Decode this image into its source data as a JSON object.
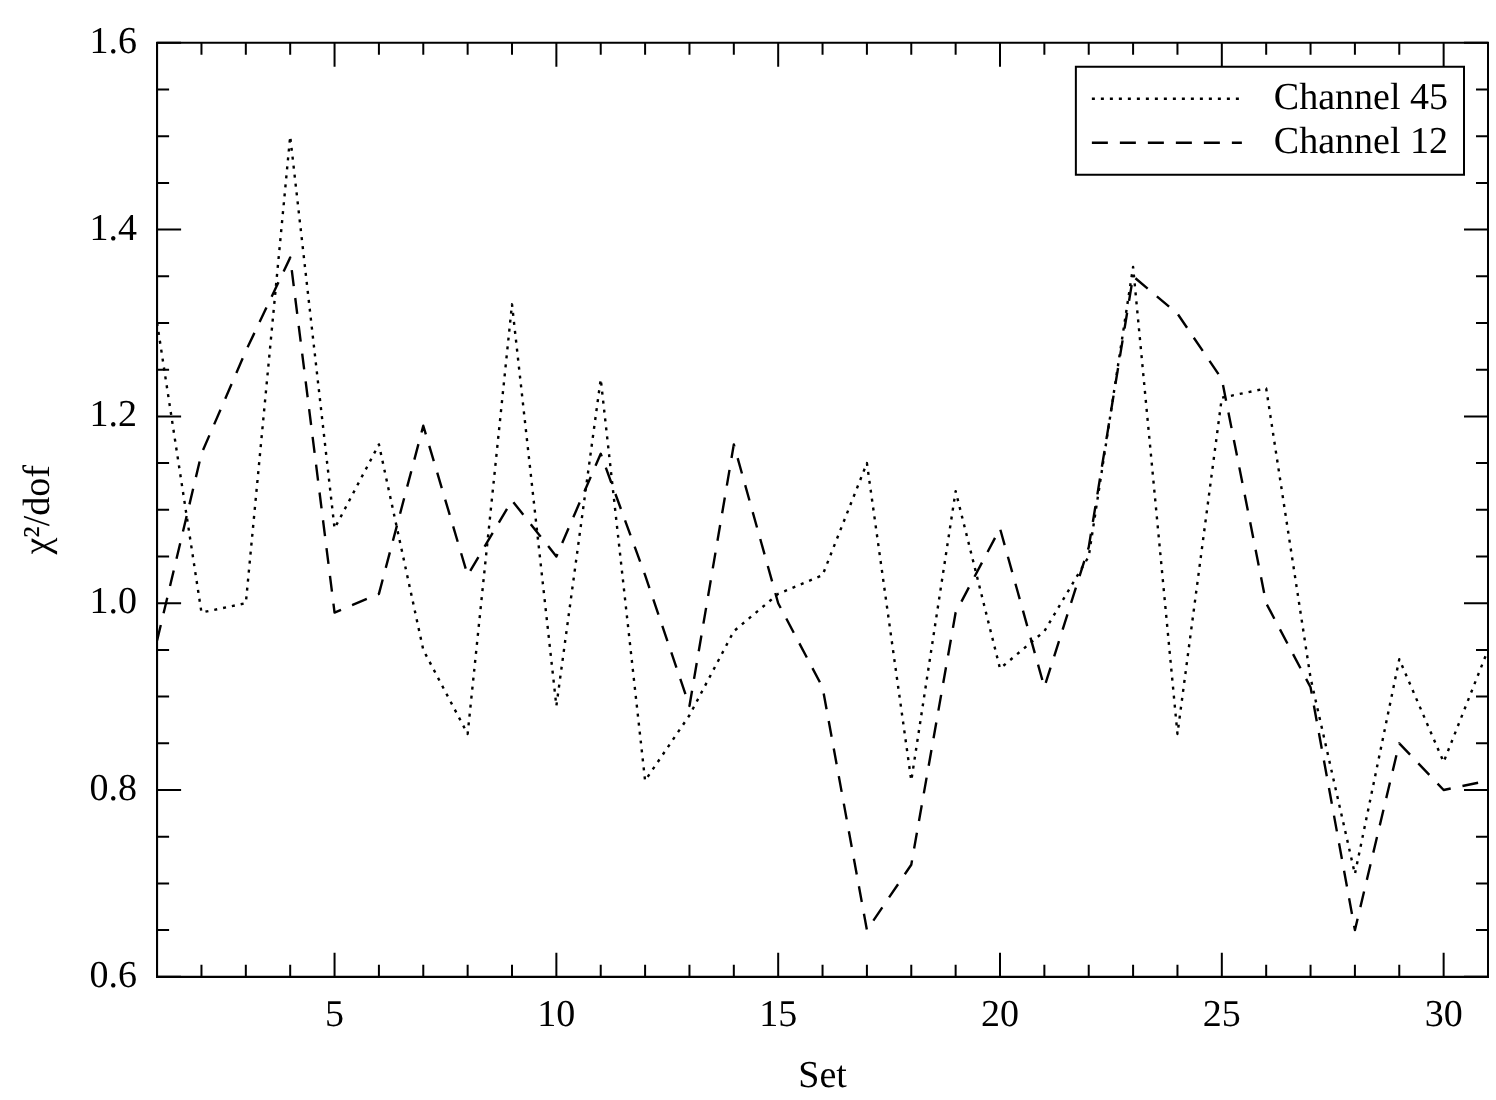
{
  "chart_data": {
    "type": "line",
    "xlabel": "Set",
    "ylabel": "χ²/dof",
    "x": [
      1,
      2,
      3,
      4,
      5,
      6,
      7,
      8,
      9,
      10,
      11,
      12,
      13,
      14,
      15,
      16,
      17,
      18,
      19,
      20,
      21,
      22,
      23,
      24,
      25,
      26,
      27,
      28,
      29,
      30,
      31
    ],
    "series": [
      {
        "name": "Channel 45",
        "color": "#000000",
        "line_style": "dotted",
        "values": [
          1.3,
          0.99,
          1.0,
          1.5,
          1.08,
          1.17,
          0.95,
          0.86,
          1.32,
          0.89,
          1.24,
          0.81,
          0.88,
          0.97,
          1.01,
          1.03,
          1.15,
          0.81,
          1.12,
          0.93,
          0.97,
          1.05,
          1.36,
          0.86,
          1.22,
          1.23,
          0.92,
          0.71,
          0.94,
          0.83,
          0.95
        ]
      },
      {
        "name": "Channel 12",
        "color": "#000000",
        "line_style": "dashed",
        "values": [
          0.96,
          1.16,
          1.27,
          1.37,
          0.99,
          1.01,
          1.19,
          1.03,
          1.11,
          1.05,
          1.16,
          1.03,
          0.89,
          1.17,
          1.0,
          0.91,
          0.65,
          0.72,
          0.99,
          1.08,
          0.91,
          1.06,
          1.35,
          1.31,
          1.24,
          1.0,
          0.91,
          0.65,
          0.85,
          0.8,
          0.81
        ]
      }
    ],
    "xlim": [
      1,
      31
    ],
    "xticks": [
      {
        "value": 2,
        "label": null
      },
      {
        "value": 3,
        "label": null
      },
      {
        "value": 4,
        "label": null
      },
      5,
      {
        "value": 6,
        "label": null
      },
      {
        "value": 7,
        "label": null
      },
      {
        "value": 8,
        "label": null
      },
      {
        "value": 9,
        "label": null
      },
      10,
      {
        "value": 11,
        "label": null
      },
      {
        "value": 12,
        "label": null
      },
      {
        "value": 13,
        "label": null
      },
      {
        "value": 14,
        "label": null
      },
      15,
      {
        "value": 16,
        "label": null
      },
      {
        "value": 17,
        "label": null
      },
      {
        "value": 18,
        "label": null
      },
      {
        "value": 19,
        "label": null
      },
      20,
      {
        "value": 21,
        "label": null
      },
      {
        "value": 22,
        "label": null
      },
      {
        "value": 23,
        "label": null
      },
      {
        "value": 24,
        "label": null
      },
      25,
      {
        "value": 26,
        "label": null
      },
      {
        "value": 27,
        "label": null
      },
      {
        "value": 28,
        "label": null
      },
      {
        "value": 29,
        "label": null
      },
      30
    ],
    "ylim": [
      0.6,
      1.6
    ],
    "yticks": [
      {
        "value": 0.6,
        "label": "0.6"
      },
      {
        "value": 0.65,
        "label": null
      },
      {
        "value": 0.7,
        "label": null
      },
      {
        "value": 0.75,
        "label": null
      },
      {
        "value": 0.8,
        "label": "0.8"
      },
      {
        "value": 0.85,
        "label": null
      },
      {
        "value": 0.9,
        "label": null
      },
      {
        "value": 0.95,
        "label": null
      },
      {
        "value": 1.0,
        "label": "1.0"
      },
      {
        "value": 1.05,
        "label": null
      },
      {
        "value": 1.1,
        "label": null
      },
      {
        "value": 1.15,
        "label": null
      },
      {
        "value": 1.2,
        "label": "1.2"
      },
      {
        "value": 1.25,
        "label": null
      },
      {
        "value": 1.3,
        "label": null
      },
      {
        "value": 1.35,
        "label": null
      },
      {
        "value": 1.4,
        "label": "1.4"
      },
      {
        "value": 1.45,
        "label": null
      },
      {
        "value": 1.5,
        "label": null
      },
      {
        "value": 1.55,
        "label": null
      },
      {
        "value": 1.6,
        "label": "1.6"
      }
    ],
    "grid": false,
    "legend": "top right",
    "marker": "none"
  }
}
